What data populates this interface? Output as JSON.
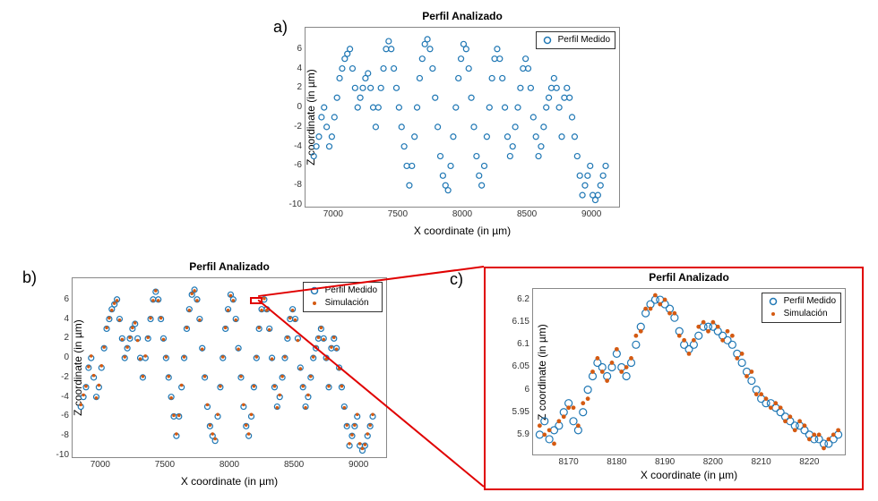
{
  "colors": {
    "measured": "#1f77b4",
    "simulation": "#d45a12",
    "axis": "#666666",
    "callout": "#e00000",
    "bg": "#ffffff"
  },
  "panel_a": {
    "label": "a)",
    "title": "Perfil Analizado",
    "xlabel": "X coordinate (in µm)",
    "ylabel": "Z coordinate (in µm)",
    "xlim": [
      6800,
      9200
    ],
    "ylim": [
      -10,
      8
    ],
    "xticks": [
      7000,
      7500,
      8000,
      8500,
      9000
    ],
    "yticks": [
      -10,
      -8,
      -6,
      -4,
      -2,
      0,
      2,
      4,
      6
    ],
    "legend": [
      {
        "label": "Perfil Medido",
        "marker": "circle",
        "color": "#1f77b4"
      }
    ],
    "series": [
      {
        "name": "perfil-medido",
        "marker": "circle",
        "color": "#1f77b4",
        "size": 3,
        "x": [
          6850,
          6870,
          6890,
          6910,
          6930,
          6950,
          6970,
          6990,
          7010,
          7030,
          7050,
          7070,
          7090,
          7110,
          7130,
          7150,
          7170,
          7190,
          7210,
          7230,
          7250,
          7270,
          7290,
          7310,
          7330,
          7350,
          7370,
          7390,
          7410,
          7430,
          7450,
          7470,
          7490,
          7510,
          7530,
          7550,
          7570,
          7590,
          7610,
          7630,
          7650,
          7670,
          7690,
          7710,
          7730,
          7750,
          7770,
          7790,
          7810,
          7830,
          7850,
          7870,
          7890,
          7910,
          7930,
          7950,
          7970,
          7990,
          8010,
          8030,
          8050,
          8070,
          8090,
          8110,
          8130,
          8150,
          8170,
          8190,
          8210,
          8230,
          8250,
          8270,
          8290,
          8310,
          8330,
          8350,
          8370,
          8390,
          8410,
          8430,
          8450,
          8470,
          8490,
          8510,
          8530,
          8550,
          8570,
          8590,
          8610,
          8630,
          8650,
          8670,
          8690,
          8710,
          8730,
          8750,
          8770,
          8790,
          8810,
          8830,
          8850,
          8870,
          8890,
          8910,
          8930,
          8950,
          8970,
          8990,
          9010,
          9030,
          9050,
          9070,
          9090,
          9110
        ],
        "y": [
          -5,
          -4,
          -3,
          -1,
          0,
          -2,
          -4,
          -3,
          -1,
          1,
          3,
          4,
          5,
          5.5,
          6,
          4,
          2,
          0,
          1,
          2,
          3,
          3.5,
          2,
          0,
          -2,
          0,
          2,
          4,
          6,
          6.8,
          6,
          4,
          2,
          0,
          -2,
          -4,
          -6,
          -8,
          -6,
          -3,
          0,
          3,
          5,
          6.5,
          7,
          6,
          4,
          1,
          -2,
          -5,
          -7,
          -8,
          -8.5,
          -6,
          -3,
          0,
          3,
          5,
          6.5,
          6,
          4,
          1,
          -2,
          -5,
          -7,
          -8,
          -6,
          -3,
          0,
          3,
          5,
          6,
          5,
          3,
          0,
          -3,
          -5,
          -4,
          -2,
          0,
          2,
          4,
          5,
          4,
          2,
          -1,
          -3,
          -5,
          -4,
          -2,
          0,
          1,
          2,
          3,
          2,
          0,
          -3,
          1,
          2,
          1,
          -1,
          -3,
          -5,
          -7,
          -9,
          -8,
          -7,
          -6,
          -9,
          -9.5,
          -9,
          -8,
          -7,
          -6
        ]
      }
    ]
  },
  "panel_b": {
    "label": "b)",
    "title": "Perfil Analizado",
    "xlabel": "X coordinate (in µm)",
    "ylabel": "Z coordinate (in µm)",
    "xlim": [
      6800,
      9200
    ],
    "ylim": [
      -10,
      8
    ],
    "xticks": [
      7000,
      7500,
      8000,
      8500,
      9000
    ],
    "yticks": [
      -10,
      -8,
      -6,
      -4,
      -2,
      0,
      2,
      4,
      6
    ],
    "legend": [
      {
        "label": "Perfil Medido",
        "marker": "circle",
        "color": "#1f77b4"
      },
      {
        "label": "Simulación",
        "marker": "dot",
        "color": "#d45a12"
      }
    ],
    "series": [
      {
        "name": "perfil-medido",
        "marker": "circle",
        "color": "#1f77b4",
        "size": 3,
        "x": [
          6850,
          6870,
          6890,
          6910,
          6930,
          6950,
          6970,
          6990,
          7010,
          7030,
          7050,
          7070,
          7090,
          7110,
          7130,
          7150,
          7170,
          7190,
          7210,
          7230,
          7250,
          7270,
          7290,
          7310,
          7330,
          7350,
          7370,
          7390,
          7410,
          7430,
          7450,
          7470,
          7490,
          7510,
          7530,
          7550,
          7570,
          7590,
          7610,
          7630,
          7650,
          7670,
          7690,
          7710,
          7730,
          7750,
          7770,
          7790,
          7810,
          7830,
          7850,
          7870,
          7890,
          7910,
          7930,
          7950,
          7970,
          7990,
          8010,
          8030,
          8050,
          8070,
          8090,
          8110,
          8130,
          8150,
          8170,
          8190,
          8210,
          8230,
          8250,
          8270,
          8290,
          8310,
          8330,
          8350,
          8370,
          8390,
          8410,
          8430,
          8450,
          8470,
          8490,
          8510,
          8530,
          8550,
          8570,
          8590,
          8610,
          8630,
          8650,
          8670,
          8690,
          8710,
          8730,
          8750,
          8770,
          8790,
          8810,
          8830,
          8850,
          8870,
          8890,
          8910,
          8930,
          8950,
          8970,
          8990,
          9010,
          9030,
          9050,
          9070,
          9090,
          9110
        ],
        "y": [
          -5,
          -4,
          -3,
          -1,
          0,
          -2,
          -4,
          -3,
          -1,
          1,
          3,
          4,
          5,
          5.5,
          6,
          4,
          2,
          0,
          1,
          2,
          3,
          3.5,
          2,
          0,
          -2,
          0,
          2,
          4,
          6,
          6.8,
          6,
          4,
          2,
          0,
          -2,
          -4,
          -6,
          -8,
          -6,
          -3,
          0,
          3,
          5,
          6.5,
          7,
          6,
          4,
          1,
          -2,
          -5,
          -7,
          -8,
          -8.5,
          -6,
          -3,
          0,
          3,
          5,
          6.5,
          6,
          4,
          1,
          -2,
          -5,
          -7,
          -8,
          -6,
          -3,
          0,
          3,
          5,
          6,
          5,
          3,
          0,
          -3,
          -5,
          -4,
          -2,
          0,
          2,
          4,
          5,
          4,
          2,
          -1,
          -3,
          -5,
          -4,
          -2,
          0,
          1,
          2,
          3,
          2,
          0,
          -3,
          1,
          2,
          1,
          -1,
          -3,
          -5,
          -7,
          -9,
          -8,
          -7,
          -6,
          -9,
          -9.5,
          -9,
          -8,
          -7,
          -6
        ]
      },
      {
        "name": "simulacion",
        "marker": "dot",
        "color": "#d45a12",
        "size": 1.8,
        "x": [
          6850,
          6870,
          6890,
          6910,
          6930,
          6950,
          6970,
          6990,
          7010,
          7030,
          7050,
          7070,
          7090,
          7110,
          7130,
          7150,
          7170,
          7190,
          7210,
          7230,
          7250,
          7270,
          7290,
          7310,
          7330,
          7350,
          7370,
          7390,
          7410,
          7430,
          7450,
          7470,
          7490,
          7510,
          7530,
          7550,
          7570,
          7590,
          7610,
          7630,
          7650,
          7670,
          7690,
          7710,
          7730,
          7750,
          7770,
          7790,
          7810,
          7830,
          7850,
          7870,
          7890,
          7910,
          7930,
          7950,
          7970,
          7990,
          8010,
          8030,
          8050,
          8070,
          8090,
          8110,
          8130,
          8150,
          8170,
          8190,
          8210,
          8230,
          8250,
          8270,
          8290,
          8310,
          8330,
          8350,
          8370,
          8390,
          8410,
          8430,
          8450,
          8470,
          8490,
          8510,
          8530,
          8550,
          8570,
          8590,
          8610,
          8630,
          8650,
          8670,
          8690,
          8710,
          8730,
          8750,
          8770,
          8790,
          8810,
          8830,
          8850,
          8870,
          8890,
          8910,
          8930,
          8950,
          8970,
          8990,
          9010,
          9030,
          9050,
          9070,
          9090,
          9110
        ],
        "y": [
          -4.8,
          -3.8,
          -2.9,
          -0.9,
          0.2,
          -1.8,
          -4.1,
          -2.8,
          -0.8,
          1.1,
          3.1,
          4.1,
          4.9,
          5.6,
          5.9,
          3.9,
          1.9,
          0.1,
          1.1,
          2.1,
          3.1,
          3.6,
          1.8,
          -0.1,
          -1.9,
          0.2,
          2.1,
          4.1,
          5.9,
          6.9,
          5.9,
          4.1,
          1.9,
          0.1,
          -1.9,
          -4.1,
          -5.9,
          -7.8,
          -5.9,
          -2.8,
          0.1,
          3.1,
          4.9,
          6.6,
          6.9,
          5.9,
          3.9,
          0.9,
          -1.9,
          -4.8,
          -6.9,
          -7.8,
          -8.3,
          -5.8,
          -2.9,
          0.1,
          3.1,
          4.9,
          6.4,
          5.9,
          3.9,
          0.9,
          -1.9,
          -4.8,
          -6.9,
          -7.8,
          -5.8,
          -2.9,
          0.1,
          3.1,
          4.9,
          6.1,
          4.9,
          2.9,
          -0.1,
          -2.9,
          -5.1,
          -3.8,
          -1.9,
          0.1,
          2.1,
          4.1,
          4.9,
          3.9,
          1.8,
          -1.1,
          -2.9,
          -5.1,
          -3.8,
          -1.9,
          0.1,
          1.1,
          2.1,
          3.1,
          1.9,
          -0.1,
          -2.9,
          1.1,
          2.1,
          0.9,
          -1.1,
          -2.9,
          -5.1,
          -6.9,
          -8.8,
          -7.9,
          -6.9,
          -5.8,
          -8.8,
          -9.3,
          -8.9,
          -7.8,
          -6.9,
          -5.8
        ]
      }
    ],
    "callout_rect": {
      "x": [
        8160,
        8230
      ],
      "y": [
        5.85,
        6.25
      ]
    }
  },
  "panel_c": {
    "label": "c)",
    "title": "Perfil Analizado",
    "xlabel": "X coordinate (in µm)",
    "ylabel": "Z coordinate (in µm)",
    "xlim": [
      8163,
      8227
    ],
    "ylim": [
      5.86,
      6.22
    ],
    "xticks": [
      8170,
      8180,
      8190,
      8200,
      8210,
      8220
    ],
    "yticks": [
      5.9,
      5.95,
      6.0,
      6.05,
      6.1,
      6.15,
      6.2
    ],
    "legend": [
      {
        "label": "Perfil Medido",
        "marker": "circle",
        "color": "#1f77b4"
      },
      {
        "label": "Simulación",
        "marker": "dot",
        "color": "#d45a12"
      }
    ],
    "series": [
      {
        "name": "perfil-medido",
        "marker": "circle",
        "color": "#1f77b4",
        "size": 4,
        "x": [
          8164,
          8165,
          8166,
          8167,
          8168,
          8169,
          8170,
          8171,
          8172,
          8173,
          8174,
          8175,
          8176,
          8177,
          8178,
          8179,
          8180,
          8181,
          8182,
          8183,
          8184,
          8185,
          8186,
          8187,
          8188,
          8189,
          8190,
          8191,
          8192,
          8193,
          8194,
          8195,
          8196,
          8197,
          8198,
          8199,
          8200,
          8201,
          8202,
          8203,
          8204,
          8205,
          8206,
          8207,
          8208,
          8209,
          8210,
          8211,
          8212,
          8213,
          8214,
          8215,
          8216,
          8217,
          8218,
          8219,
          8220,
          8221,
          8222,
          8223,
          8224,
          8225,
          8226
        ],
        "y": [
          5.9,
          5.93,
          5.89,
          5.91,
          5.92,
          5.95,
          5.97,
          5.93,
          5.91,
          5.95,
          6.0,
          6.03,
          6.06,
          6.05,
          6.03,
          6.05,
          6.08,
          6.05,
          6.03,
          6.06,
          6.1,
          6.14,
          6.17,
          6.19,
          6.2,
          6.2,
          6.19,
          6.18,
          6.16,
          6.13,
          6.1,
          6.09,
          6.1,
          6.12,
          6.14,
          6.14,
          6.14,
          6.13,
          6.12,
          6.11,
          6.1,
          6.08,
          6.06,
          6.04,
          6.02,
          6.0,
          5.98,
          5.97,
          5.97,
          5.96,
          5.95,
          5.94,
          5.93,
          5.92,
          5.92,
          5.91,
          5.9,
          5.89,
          5.89,
          5.88,
          5.88,
          5.89,
          5.9
        ]
      },
      {
        "name": "simulacion",
        "marker": "dot",
        "color": "#d45a12",
        "size": 2.4,
        "x": [
          8164,
          8165,
          8166,
          8167,
          8168,
          8169,
          8170,
          8171,
          8172,
          8173,
          8174,
          8175,
          8176,
          8177,
          8178,
          8179,
          8180,
          8181,
          8182,
          8183,
          8184,
          8185,
          8186,
          8187,
          8188,
          8189,
          8190,
          8191,
          8192,
          8193,
          8194,
          8195,
          8196,
          8197,
          8198,
          8199,
          8200,
          8201,
          8202,
          8203,
          8204,
          8205,
          8206,
          8207,
          8208,
          8209,
          8210,
          8211,
          8212,
          8213,
          8214,
          8215,
          8216,
          8217,
          8218,
          8219,
          8220,
          8221,
          8222,
          8223,
          8224,
          8225,
          8226
        ],
        "y": [
          5.92,
          5.9,
          5.91,
          5.88,
          5.93,
          5.94,
          5.96,
          5.96,
          5.92,
          5.97,
          5.98,
          6.04,
          6.07,
          6.04,
          6.02,
          6.06,
          6.09,
          6.04,
          6.05,
          6.07,
          6.12,
          6.13,
          6.18,
          6.18,
          6.21,
          6.19,
          6.2,
          6.17,
          6.17,
          6.12,
          6.11,
          6.08,
          6.11,
          6.14,
          6.15,
          6.13,
          6.15,
          6.14,
          6.11,
          6.13,
          6.12,
          6.07,
          6.08,
          6.03,
          6.04,
          5.99,
          5.99,
          5.98,
          5.96,
          5.97,
          5.96,
          5.93,
          5.94,
          5.91,
          5.93,
          5.92,
          5.89,
          5.9,
          5.9,
          5.87,
          5.89,
          5.9,
          5.91
        ]
      }
    ]
  }
}
